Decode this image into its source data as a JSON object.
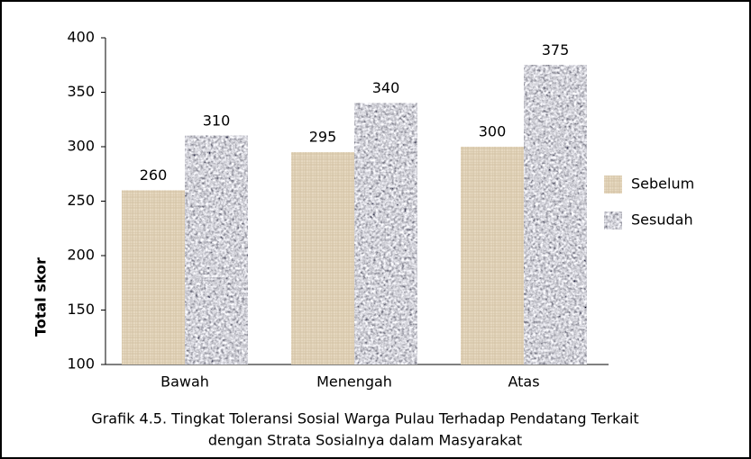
{
  "chart_data": {
    "type": "bar",
    "title": [
      "Grafik 4.5. Tingkat Toleransi Sosial Warga Pulau Terhadap Pendatang Terkait",
      "dengan Strata Sosialnya dalam Masyarakat"
    ],
    "y_label": "Total skor",
    "categories": [
      "Bawah",
      "Menengah",
      "Atas"
    ],
    "series": [
      {
        "name": "Sebelum",
        "color": "#e6d8c0",
        "values": [
          260,
          295,
          300
        ]
      },
      {
        "name": "Sesudah",
        "color": "#8a8a8e",
        "values": [
          310,
          340,
          375
        ]
      }
    ],
    "ylim": [
      100,
      400
    ],
    "yticks": [
      100,
      150,
      200,
      250,
      300,
      350,
      400
    ],
    "legend": "right"
  }
}
